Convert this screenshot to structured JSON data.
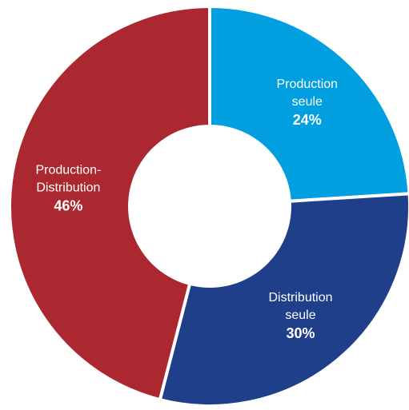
{
  "chart_data": {
    "type": "pie",
    "style": "donut",
    "title": "",
    "slices": [
      {
        "label_lines": [
          "Production",
          "seule"
        ],
        "value": 24,
        "value_label": "24%",
        "color": "#019fe0"
      },
      {
        "label_lines": [
          "Distribution",
          "seule"
        ],
        "value": 30,
        "value_label": "30%",
        "color": "#1f3f8b"
      },
      {
        "label_lines": [
          "Production-",
          "Distribution"
        ],
        "value": 46,
        "value_label": "46%",
        "color": "#ac2830"
      }
    ],
    "start_angle_deg": 0,
    "direction": "clockwise",
    "separator_color": "#ffffff",
    "legend": "none"
  }
}
